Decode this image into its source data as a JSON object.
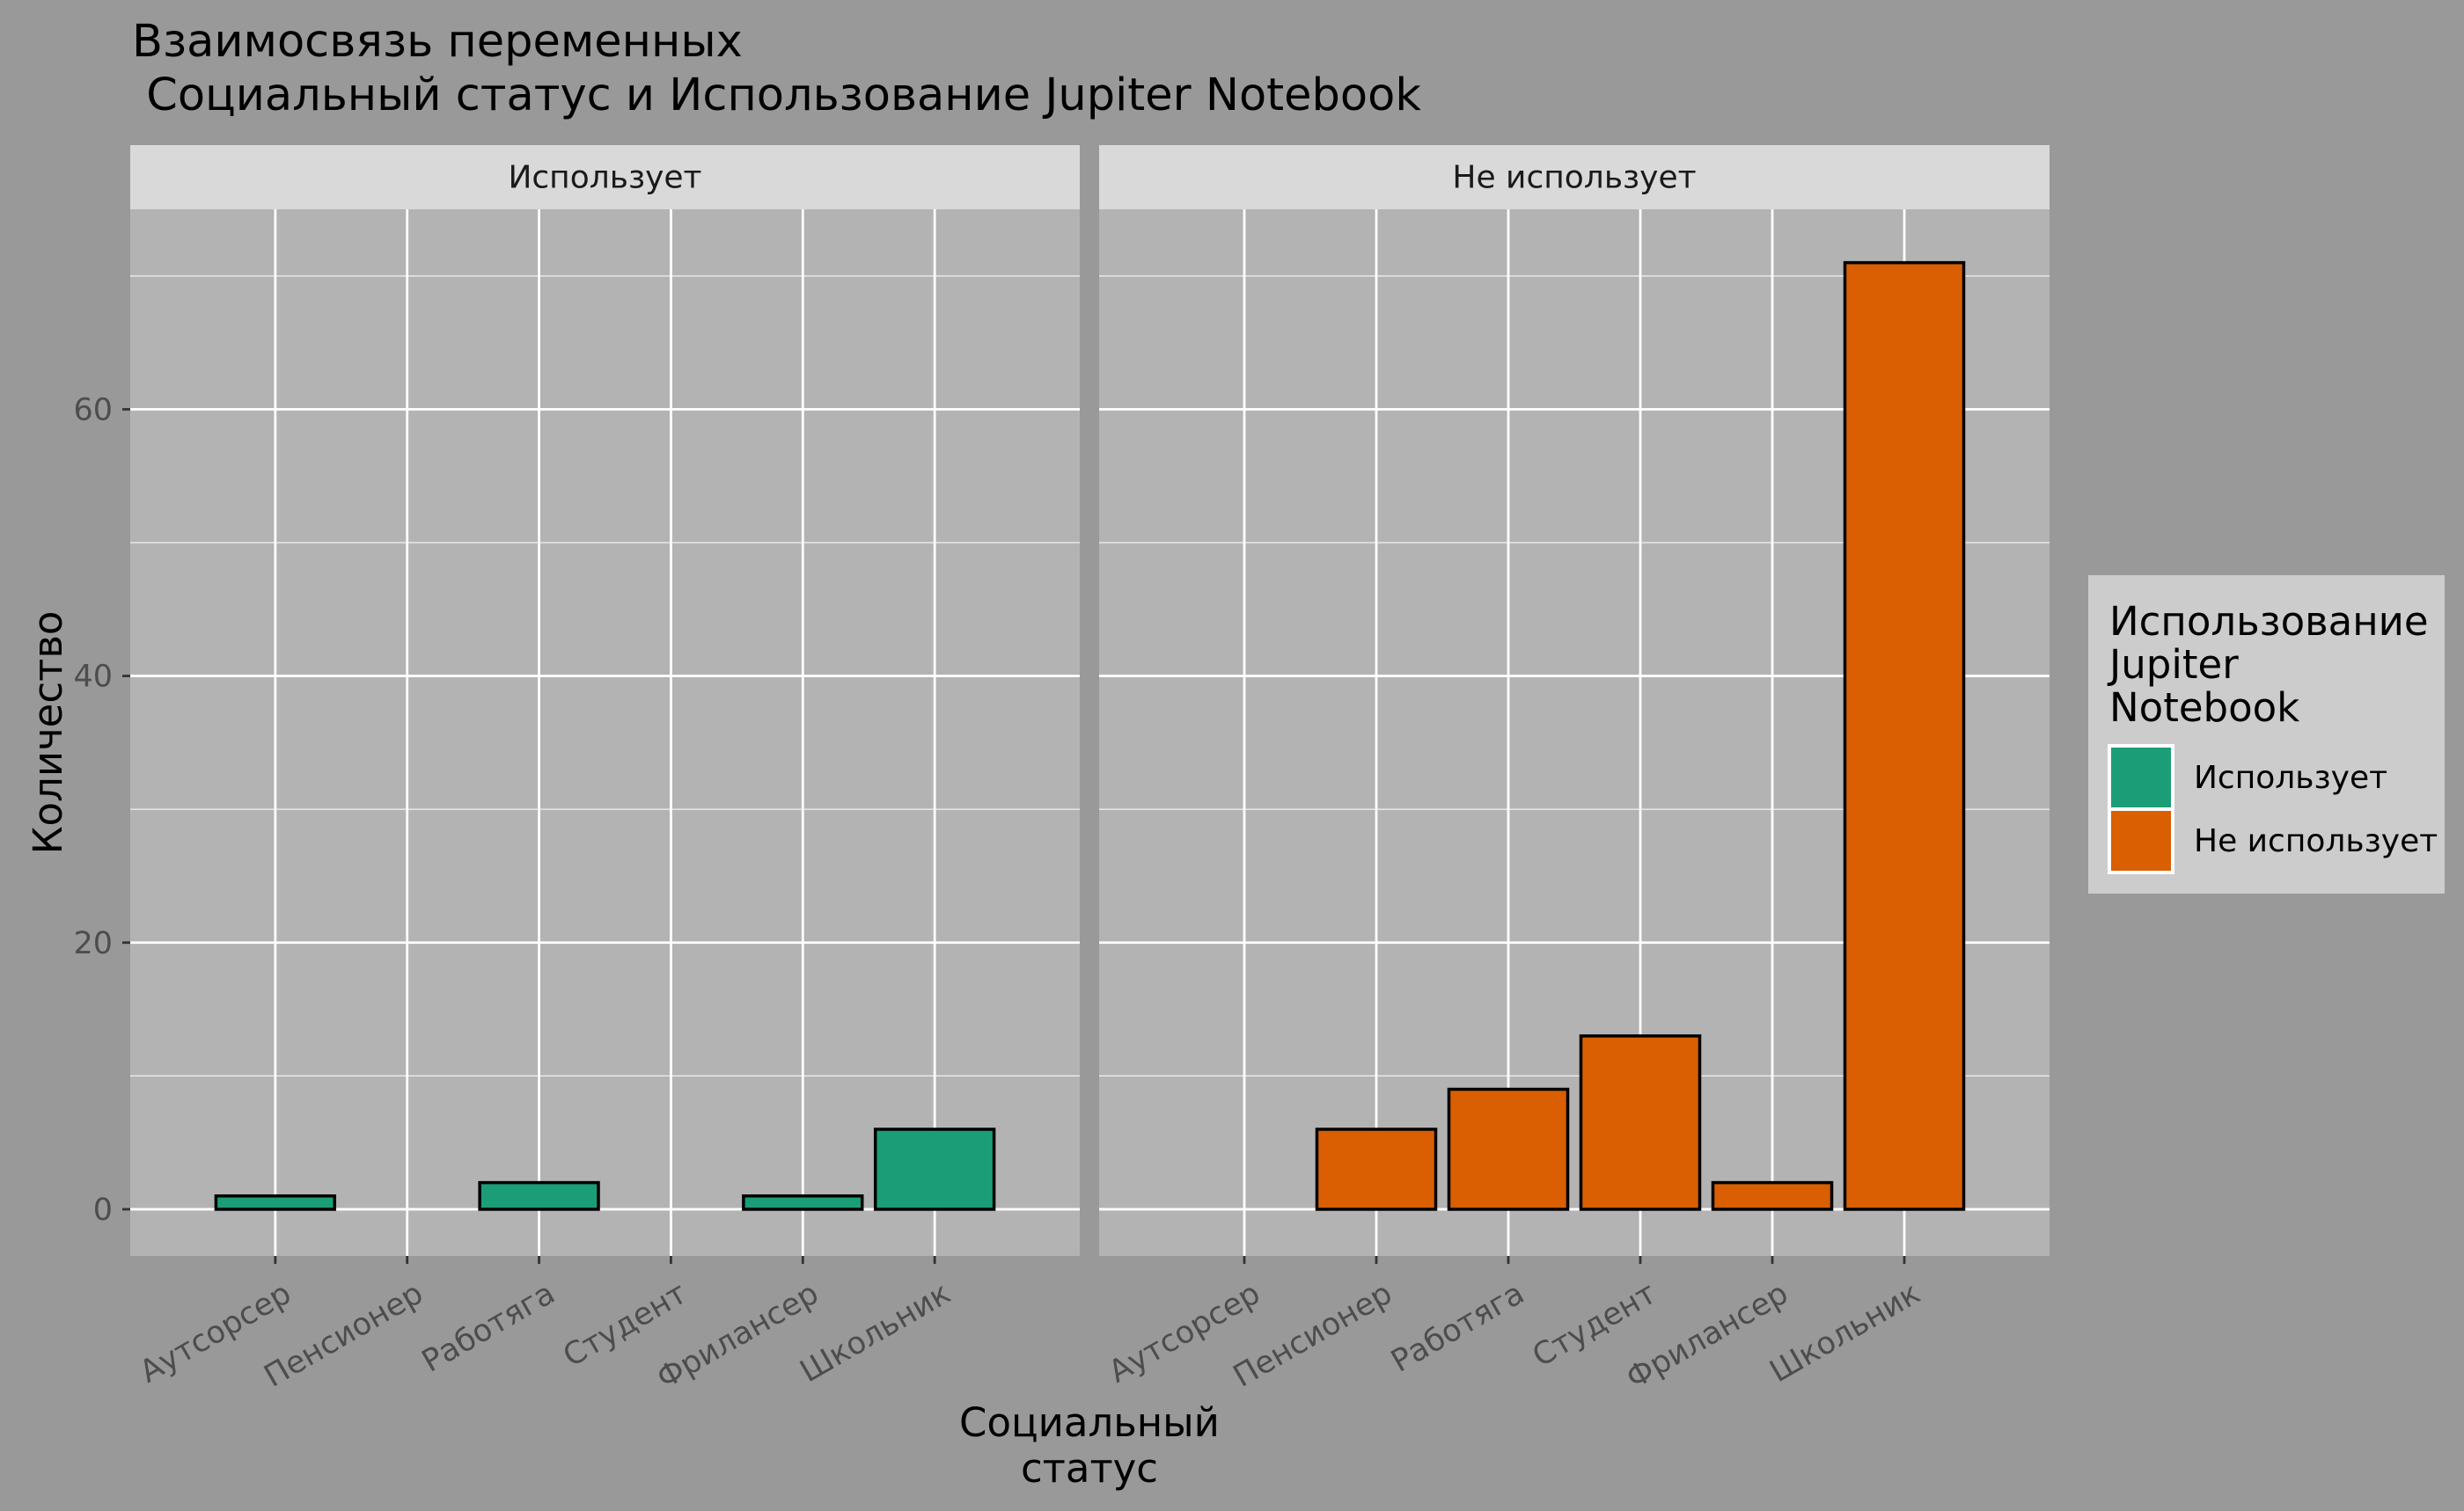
{
  "chart_data": {
    "type": "bar",
    "title": "Взаимосвязь переменных\n Социальный статус и Использование Jupiter Notebook",
    "xlabel": "Социальный\nстатус",
    "ylabel": "Количество",
    "categories": [
      "Аутсорсер",
      "Пенсионер",
      "Работяга",
      "Студент",
      "Фрилансер",
      "Школьник"
    ],
    "yticks": [
      0,
      20,
      40,
      60
    ],
    "ylim": [
      -3.5,
      75
    ],
    "grid": true,
    "facets": [
      {
        "label": "Использует",
        "series": "Использует",
        "values": [
          1,
          0,
          2,
          0,
          1,
          6
        ]
      },
      {
        "label": "Не использует",
        "series": "Не использует",
        "values": [
          0,
          6,
          9,
          13,
          2,
          71
        ]
      }
    ],
    "legend": {
      "title": "Использование\nJupiter\nNotebook",
      "position": "right",
      "items": [
        {
          "name": "Использует",
          "color": "#1B9E77"
        },
        {
          "name": "Не использует",
          "color": "#D95F02"
        }
      ]
    }
  },
  "colors": {
    "background": "#999999",
    "panel": "#B3B3B3",
    "strip": "#D9D9D9",
    "legend_bg": "#CCCCCC",
    "grid": "#FFFFFF",
    "bar_outline": "#000000"
  }
}
